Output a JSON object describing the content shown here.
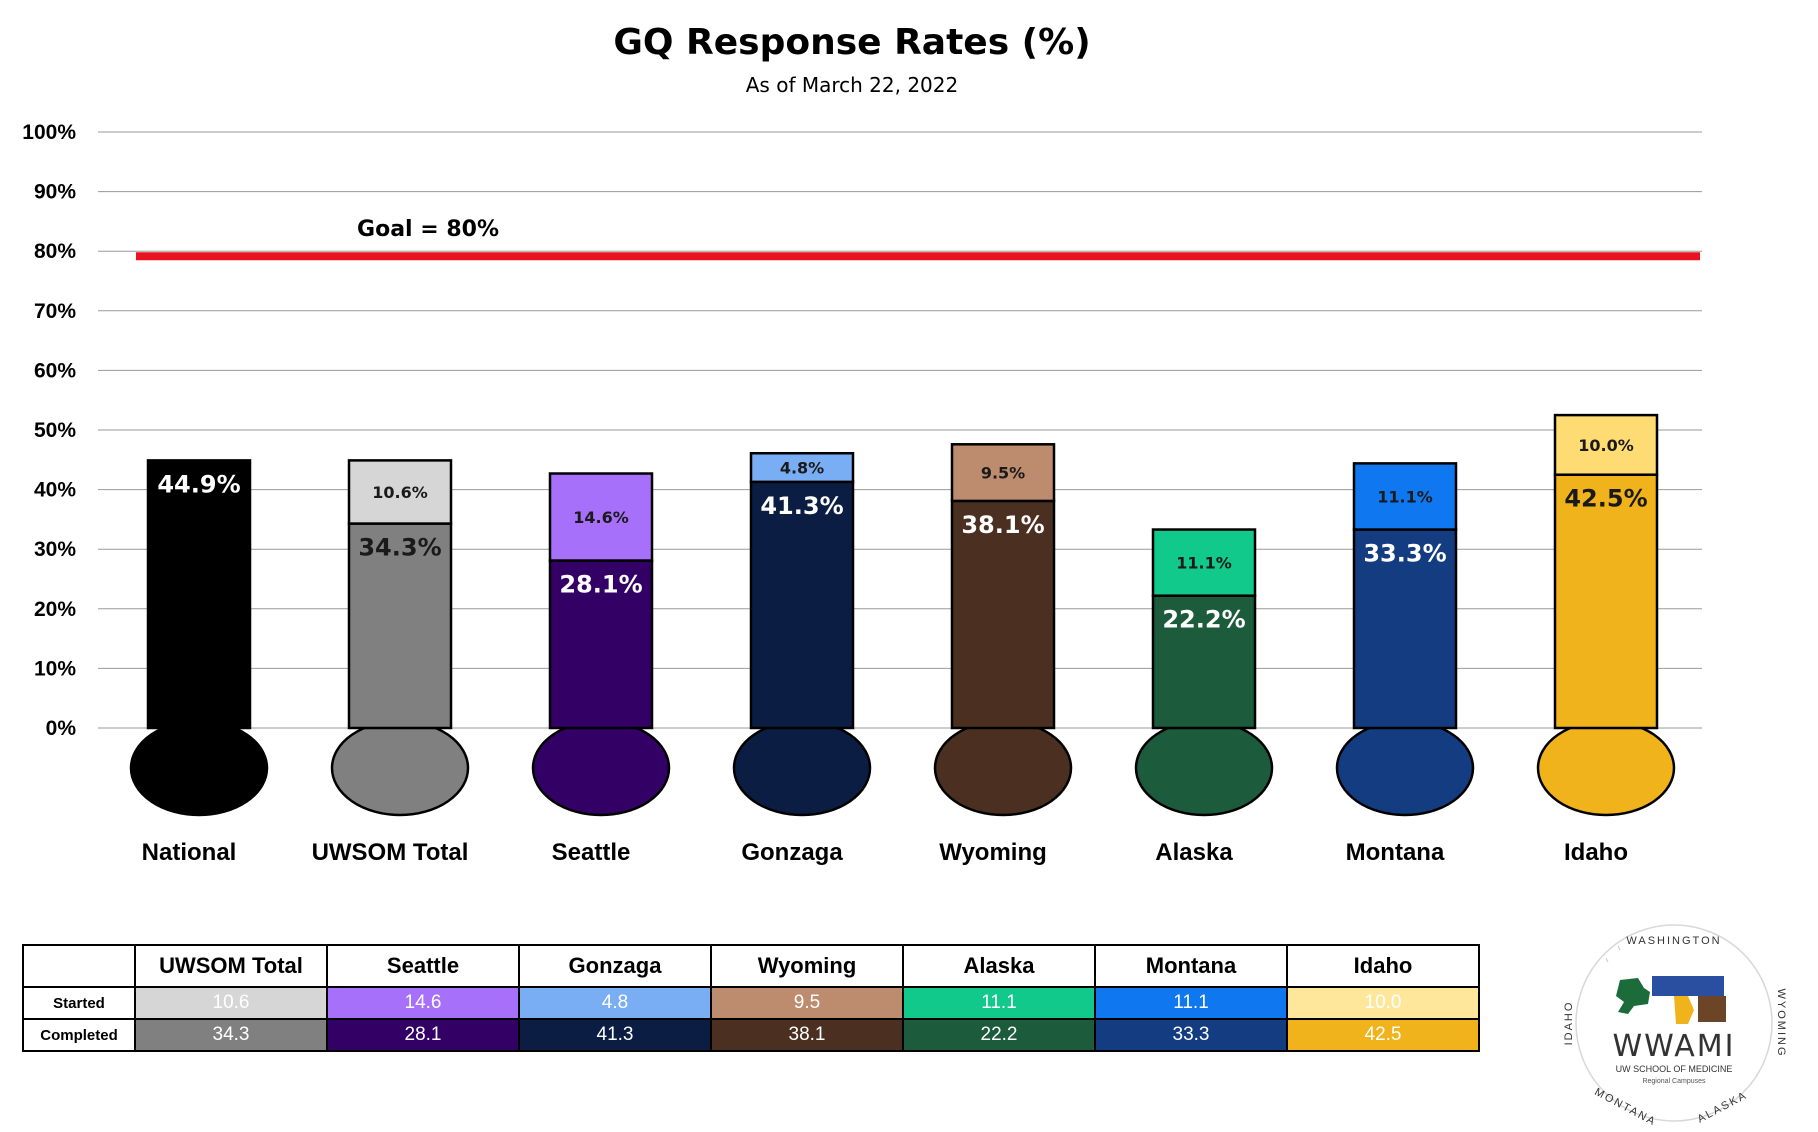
{
  "title": "GQ Response Rates (%)",
  "subtitle": "As of March 22, 2022",
  "goal_label": "Goal = 80%",
  "colors": {
    "goal_line": "#e8131f",
    "gridline": "#9a9a9a"
  },
  "chart_data": {
    "type": "bar",
    "stacked": true,
    "categories": [
      "National",
      "UWSOM Total",
      "Seattle",
      "Gonzaga",
      "Wyoming",
      "Alaska",
      "Montana",
      "Idaho"
    ],
    "series": [
      {
        "name": "Completed",
        "values": [
          44.9,
          34.3,
          28.1,
          41.3,
          38.1,
          22.2,
          33.3,
          42.5
        ],
        "labels": [
          "44.9%",
          "34.3%",
          "28.1%",
          "41.3%",
          "38.1%",
          "22.2%",
          "33.3%",
          "42.5%"
        ],
        "colors": [
          "#000000",
          "#808080",
          "#330066",
          "#0c1d44",
          "#4b2f21",
          "#1c5b3c",
          "#143c80",
          "#f0b31b"
        ],
        "label_colors": [
          "#ffffff",
          "#1a1a1a",
          "#ffffff",
          "#ffffff",
          "#ffffff",
          "#ffffff",
          "#ffffff",
          "#1a1a1a"
        ]
      },
      {
        "name": "Started",
        "values": [
          null,
          10.6,
          14.6,
          4.8,
          9.5,
          11.1,
          11.1,
          10.0
        ],
        "labels": [
          "",
          "10.6%",
          "14.6%",
          "4.8%",
          "9.5%",
          "11.1%",
          "11.1%",
          "10.0%"
        ],
        "colors": [
          "#000000",
          "#d6d6d6",
          "#a770fb",
          "#79aef4",
          "#bd8b6d",
          "#10c98a",
          "#0f78f0",
          "#fedb73"
        ]
      }
    ],
    "goal": 80,
    "ylim": [
      0,
      100
    ],
    "yticks": [
      "0%",
      "10%",
      "20%",
      "30%",
      "40%",
      "50%",
      "60%",
      "70%",
      "80%",
      "90%",
      "100%"
    ],
    "grid": true,
    "legend": "none"
  },
  "table": {
    "headers": [
      "UWSOM Total",
      "Seattle",
      "Gonzaga",
      "Wyoming",
      "Alaska",
      "Montana",
      "Idaho"
    ],
    "rows": [
      {
        "label": "Started",
        "values": [
          "10.6",
          "14.6",
          "4.8",
          "9.5",
          "11.1",
          "11.1",
          "10.0"
        ],
        "colors": [
          "#d6d6d6",
          "#a770fb",
          "#79aef4",
          "#bd8b6d",
          "#10c98a",
          "#0f78f0",
          "#fee79a"
        ]
      },
      {
        "label": "Completed",
        "values": [
          "34.3",
          "28.1",
          "41.3",
          "38.1",
          "22.2",
          "33.3",
          "42.5"
        ],
        "colors": [
          "#808080",
          "#330066",
          "#0c1d44",
          "#4b2f21",
          "#1c5b3c",
          "#143c80",
          "#f0b31b"
        ]
      }
    ]
  },
  "logo": {
    "name": "WWAMI",
    "line1": "UW SCHOOL OF MEDICINE",
    "line2": "Regional Campuses",
    "ring": [
      "WASHINGTON",
      "WYOMING",
      "ALASKA",
      "MONTANA",
      "IDAHO"
    ]
  }
}
